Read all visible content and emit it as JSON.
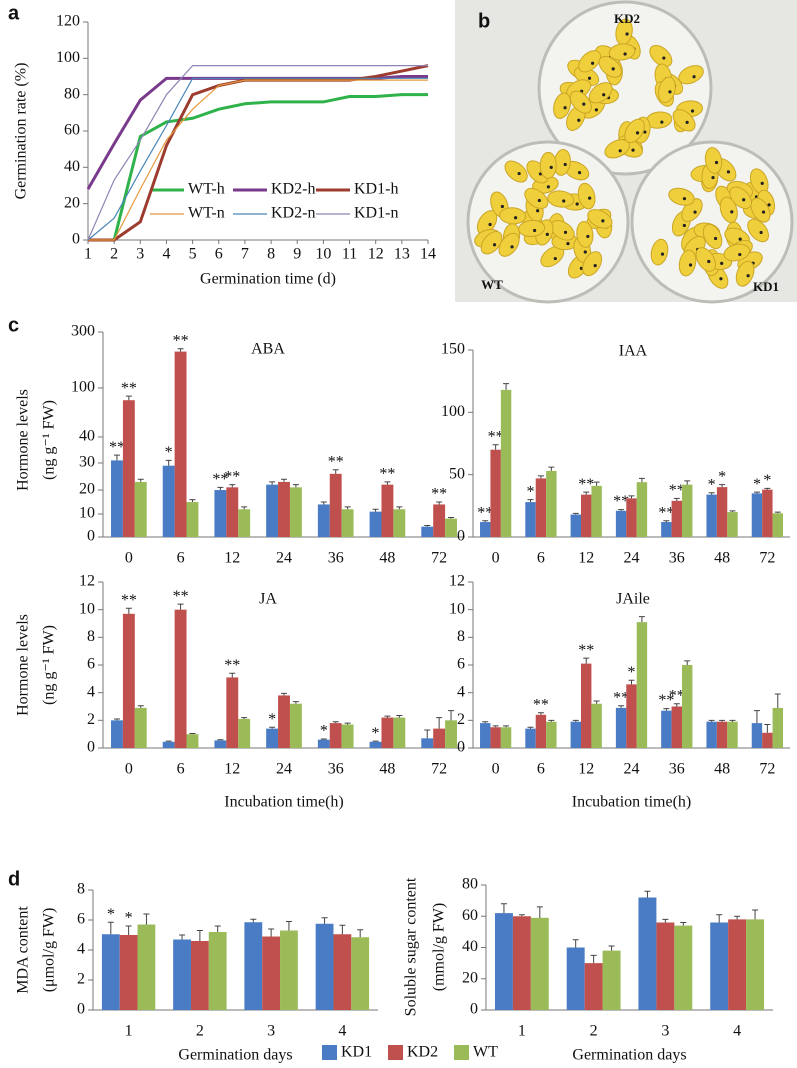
{
  "panel_labels": [
    "a",
    "b",
    "c",
    "d"
  ],
  "photo": {
    "labels": [
      "KD2",
      "WT",
      "KD1"
    ]
  },
  "chart_data": [
    {
      "type": "line",
      "y_label": "Germination rate (%)",
      "x_label": "Germination time (d)",
      "x": [
        1,
        2,
        3,
        4,
        5,
        6,
        7,
        8,
        9,
        10,
        11,
        12,
        13,
        14
      ],
      "xlim": [
        1,
        14
      ],
      "xticks": [
        1,
        2,
        3,
        4,
        5,
        6,
        7,
        8,
        9,
        10,
        11,
        12,
        13,
        14
      ],
      "ylim": [
        0,
        120
      ],
      "yticks": [
        0,
        20,
        40,
        60,
        80,
        100,
        120
      ],
      "legend": "lower center",
      "series": [
        {
          "name": "WT-h",
          "color": "#2fb24a",
          "line_width": 3,
          "values": [
            0,
            0,
            57,
            65,
            67,
            72,
            75,
            76,
            76,
            76,
            79,
            79,
            80,
            80
          ]
        },
        {
          "name": "KD2-h",
          "color": "#7a3a8c",
          "line_width": 3,
          "values": [
            28,
            53,
            77,
            89,
            89,
            89,
            89,
            89,
            89,
            89,
            89,
            89,
            90,
            90
          ]
        },
        {
          "name": "KD1-h",
          "color": "#9c3b2e",
          "line_width": 3,
          "values": [
            0,
            0,
            10,
            52,
            80,
            85,
            88,
            88,
            88,
            88,
            88,
            90,
            93,
            96
          ]
        },
        {
          "name": "WT-n",
          "color": "#e59a3c",
          "line_width": 1.2,
          "values": [
            0,
            0,
            28,
            55,
            72,
            85,
            88,
            88,
            88,
            88,
            88,
            88,
            88,
            88
          ]
        },
        {
          "name": "KD2-n",
          "color": "#4a86b8",
          "line_width": 1.2,
          "values": [
            0,
            12,
            38,
            63,
            89,
            89,
            89,
            89,
            89,
            89,
            89,
            89,
            89,
            89
          ]
        },
        {
          "name": "KD1-n",
          "color": "#8d86b5",
          "line_width": 1.2,
          "values": [
            0,
            33,
            55,
            80,
            96,
            96,
            96,
            96,
            96,
            96,
            96,
            96,
            96,
            96
          ]
        }
      ]
    },
    {
      "type": "bar",
      "title": "ABA",
      "y_label": [
        "Hormone levels",
        "(ng g⁻¹ FW)"
      ],
      "categories": [
        "0",
        "6",
        "12",
        "24",
        "36",
        "48",
        "72"
      ],
      "ylim": [
        0,
        300
      ],
      "yticks": [
        0,
        10,
        20,
        30,
        40,
        100,
        300
      ],
      "series": [
        {
          "color": "#4a7cc5",
          "values": [
            31,
            29,
            20,
            22,
            14,
            11,
            4.5
          ],
          "errors": [
            2,
            2,
            1,
            1,
            1,
            1,
            0.5
          ],
          "annotations": [
            "**",
            "*",
            "**",
            null,
            null,
            null,
            null
          ]
        },
        {
          "color": "#c0504d",
          "values": [
            85,
            230,
            21,
            23,
            26,
            22,
            14
          ],
          "errors": [
            5,
            10,
            1,
            1,
            1.5,
            1,
            1
          ],
          "annotations": [
            "**",
            "**",
            "**",
            null,
            "**",
            "**",
            "**"
          ]
        },
        {
          "color": "#9bbb59",
          "values": [
            23,
            15,
            12,
            21,
            12,
            12,
            8
          ],
          "errors": [
            1,
            1,
            1,
            1,
            1,
            1,
            0.5
          ],
          "annotations": [
            null,
            null,
            null,
            null,
            null,
            null,
            null
          ]
        }
      ]
    },
    {
      "type": "bar",
      "title": "IAA",
      "categories": [
        "0",
        "6",
        "12",
        "24",
        "36",
        "48",
        "72"
      ],
      "ylim": [
        0,
        150
      ],
      "yticks": [
        0,
        50,
        100,
        150
      ],
      "series": [
        {
          "color": "#4a7cc5",
          "values": [
            12,
            28,
            18,
            21,
            12,
            34,
            35
          ],
          "errors": [
            1,
            2,
            1,
            1,
            1,
            1.5,
            1
          ],
          "annotations": [
            "**",
            "*",
            null,
            "**",
            "**",
            "*",
            "*"
          ]
        },
        {
          "color": "#c0504d",
          "values": [
            70,
            47,
            34,
            31,
            29,
            40,
            38
          ],
          "errors": [
            4,
            2,
            2,
            2,
            2,
            2,
            1
          ],
          "annotations": [
            "**",
            null,
            "**",
            null,
            "**",
            "*",
            "*"
          ]
        },
        {
          "color": "#9bbb59",
          "values": [
            118,
            53,
            41,
            44,
            42,
            20,
            19
          ],
          "errors": [
            5,
            3,
            3,
            3,
            3,
            1,
            1
          ],
          "annotations": [
            null,
            null,
            null,
            null,
            null,
            null,
            null
          ]
        }
      ]
    },
    {
      "type": "bar",
      "title": "JA",
      "y_label": [
        "Hormone levels",
        "(ng g⁻¹ FW)"
      ],
      "x_label": "Incubation time(h)",
      "categories": [
        "0",
        "6",
        "12",
        "24",
        "36",
        "48",
        "72"
      ],
      "ylim": [
        0,
        12
      ],
      "yticks": [
        0,
        2,
        4,
        6,
        8,
        10,
        12
      ],
      "series": [
        {
          "color": "#4a7cc5",
          "values": [
            2,
            0.45,
            0.55,
            1.4,
            0.6,
            0.45,
            0.7
          ],
          "errors": [
            0.1,
            0.05,
            0.05,
            0.1,
            0.05,
            0.05,
            0.6
          ],
          "annotations": [
            null,
            null,
            null,
            "*",
            "*",
            "*",
            null
          ]
        },
        {
          "color": "#c0504d",
          "values": [
            9.7,
            10,
            5.1,
            3.8,
            1.8,
            2.2,
            1.4
          ],
          "errors": [
            0.4,
            0.4,
            0.3,
            0.15,
            0.1,
            0.1,
            0.8
          ],
          "annotations": [
            "**",
            "**",
            "**",
            null,
            null,
            null,
            null
          ]
        },
        {
          "color": "#9bbb59",
          "values": [
            2.9,
            1,
            2.1,
            3.2,
            1.7,
            2.2,
            2
          ],
          "errors": [
            0.15,
            0.05,
            0.1,
            0.15,
            0.1,
            0.15,
            0.7
          ],
          "annotations": [
            null,
            null,
            null,
            null,
            null,
            null,
            null
          ]
        }
      ]
    },
    {
      "type": "bar",
      "title": "JAile",
      "x_label": "Incubation time(h)",
      "categories": [
        "0",
        "6",
        "12",
        "24",
        "36",
        "48",
        "72"
      ],
      "ylim": [
        0,
        12
      ],
      "yticks": [
        0,
        2,
        4,
        6,
        8,
        10,
        12
      ],
      "series": [
        {
          "color": "#4a7cc5",
          "values": [
            1.8,
            1.4,
            1.9,
            2.9,
            2.7,
            1.9,
            1.8
          ],
          "errors": [
            0.1,
            0.1,
            0.1,
            0.15,
            0.15,
            0.1,
            0.9
          ],
          "annotations": [
            null,
            null,
            null,
            "**",
            "**",
            null,
            null
          ]
        },
        {
          "color": "#c0504d",
          "values": [
            1.5,
            2.4,
            6.1,
            4.6,
            3,
            1.9,
            1.1
          ],
          "errors": [
            0.1,
            0.15,
            0.4,
            0.3,
            0.2,
            0.1,
            0.6
          ],
          "annotations": [
            null,
            "**",
            "**",
            "*",
            "**",
            null,
            null
          ]
        },
        {
          "color": "#9bbb59",
          "values": [
            1.5,
            1.9,
            3.2,
            9.1,
            6,
            1.9,
            2.9
          ],
          "errors": [
            0.1,
            0.1,
            0.2,
            0.4,
            0.3,
            0.1,
            1
          ]
        }
      ]
    },
    {
      "type": "bar",
      "y_label": [
        "MDA content",
        "(μmol/g FW)"
      ],
      "x_label": "Germination days",
      "categories": [
        "1",
        "2",
        "3",
        "4"
      ],
      "ylim": [
        0,
        8
      ],
      "yticks": [
        0,
        2,
        4,
        6,
        8
      ],
      "legend": "bottom",
      "series": [
        {
          "name": "KD1",
          "color": "#4a7cc5",
          "values": [
            5.05,
            4.7,
            5.85,
            5.75
          ],
          "errors": [
            0.8,
            0.3,
            0.2,
            0.4
          ],
          "annotations": [
            "*",
            null,
            null,
            null
          ]
        },
        {
          "name": "KD2",
          "color": "#c0504d",
          "values": [
            5,
            4.6,
            4.9,
            5.05
          ],
          "errors": [
            0.6,
            0.7,
            0.5,
            0.6
          ],
          "annotations": [
            "*",
            null,
            null,
            null
          ]
        },
        {
          "name": "WT",
          "color": "#9bbb59",
          "values": [
            5.7,
            5.2,
            5.3,
            4.85
          ],
          "errors": [
            0.7,
            0.4,
            0.6,
            0.5
          ]
        }
      ]
    },
    {
      "type": "bar",
      "y_label": [
        "Soluble sugar content",
        "(mmol/g FW)"
      ],
      "x_label": "Germination days",
      "categories": [
        "1",
        "2",
        "3",
        "4"
      ],
      "ylim": [
        0,
        80
      ],
      "yticks": [
        0,
        20,
        40,
        60,
        80
      ],
      "series": [
        {
          "color": "#4a7cc5",
          "values": [
            62,
            40,
            72,
            56
          ],
          "errors": [
            6,
            5,
            4,
            5
          ]
        },
        {
          "color": "#c0504d",
          "values": [
            60,
            30,
            56,
            58
          ],
          "errors": [
            1,
            5,
            2,
            2
          ]
        },
        {
          "color": "#9bbb59",
          "values": [
            59,
            38,
            54,
            58
          ],
          "errors": [
            7,
            3,
            2,
            6
          ]
        }
      ]
    }
  ]
}
